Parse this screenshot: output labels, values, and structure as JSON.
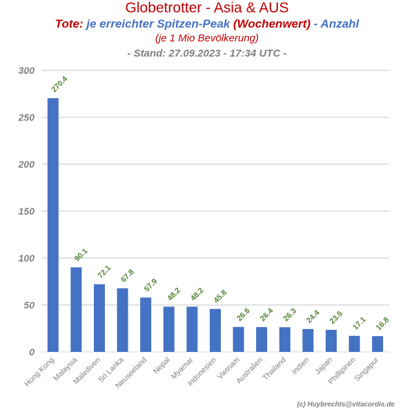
{
  "header": {
    "title": "Globetrotter - Asia & AUS",
    "subtitle_part1": "Tote:",
    "subtitle_part2": "je erreichter Spitzen-Peak",
    "subtitle_part3": "(Wochenwert)",
    "subtitle_part4": "- Anzahl",
    "line3": "(je 1 Mio Bevölkerung)",
    "line4": "- Stand: 27.09.2023 - 17:34 UTC -"
  },
  "footer": {
    "credit": "(c) Huybrechts@vitacordis.de"
  },
  "colors": {
    "bar": "#4472c4",
    "data_label": "#548235",
    "title": "#c00000",
    "subtitle_blue": "#4472c4",
    "axis_text": "#808080",
    "grid": "#d9d9d9"
  },
  "chart_data": {
    "type": "bar",
    "categories": [
      "Hong Kong",
      "Malaysia",
      "Malediven",
      "Sri Lanka",
      "Neuseeland",
      "Nepal",
      "Myamar",
      "Indonesien",
      "Vietnam",
      "Australien",
      "Thailand",
      "Indien",
      "Japan",
      "Phillipinen",
      "Singapur"
    ],
    "values": [
      270.4,
      90.1,
      72.1,
      67.8,
      57.9,
      48.2,
      48.2,
      45.8,
      26.6,
      26.4,
      26.3,
      24.4,
      23.5,
      17.1,
      16.8
    ],
    "data_labels": [
      "270.4",
      "90.1",
      "72.1",
      "67.8",
      "57.9",
      "48.2",
      "48.2",
      "45.8",
      "26.6",
      "26.4",
      "26.3",
      "24.4",
      "23.5",
      "17.1",
      "16.8"
    ],
    "ylim": [
      0,
      300
    ],
    "yticks": [
      0,
      50,
      100,
      150,
      200,
      250,
      300
    ],
    "ytick_labels": [
      "0",
      "50",
      "100",
      "150",
      "200",
      "250",
      "300"
    ],
    "grid": true,
    "legend": "none"
  }
}
